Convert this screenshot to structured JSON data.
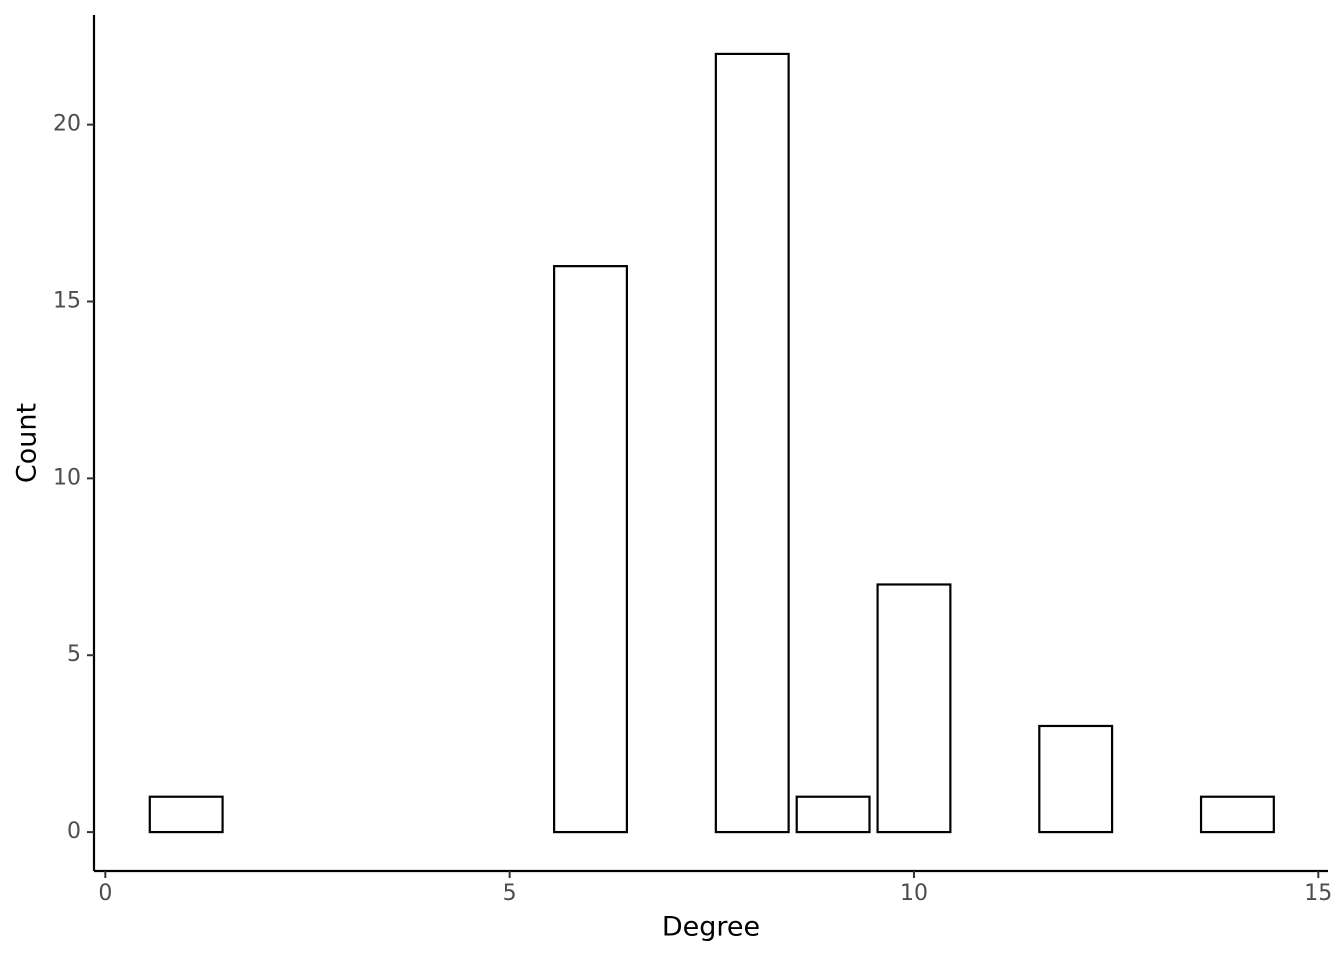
{
  "chart_data": {
    "type": "bar",
    "x": [
      1,
      6,
      8,
      9,
      10,
      12,
      14
    ],
    "values": [
      1,
      16,
      22,
      1,
      7,
      3,
      1
    ],
    "color": "#ffffff",
    "edgecolor": "#000000",
    "xlabel": "Degree",
    "ylabel": "Count",
    "xlim": [
      -0.14,
      15.12
    ],
    "xticks": [
      0,
      5,
      10,
      15
    ],
    "ylim": [
      -1.1,
      23.1
    ],
    "yticks": [
      0,
      5,
      10,
      15,
      20
    ],
    "grid": false
  }
}
